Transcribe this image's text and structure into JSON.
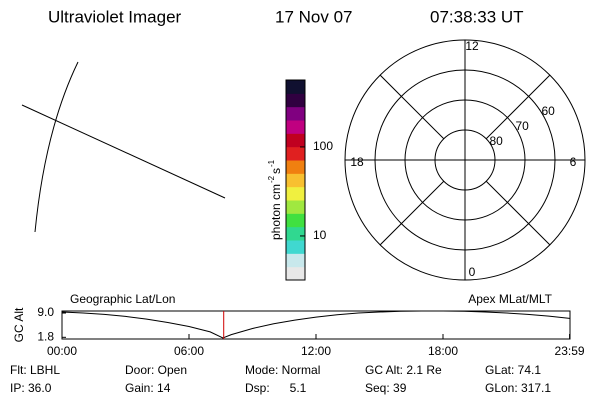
{
  "header": {
    "title": "Ultraviolet Imager",
    "date": "17 Nov 07",
    "time": "07:38:33 UT"
  },
  "colorbar": {
    "label": [
      "photon cm",
      "-2",
      "s",
      "-1"
    ],
    "scale": "log",
    "lim": [
      3.2,
      565
    ],
    "ticks": [
      10,
      100
    ],
    "colors": [
      "#e8e8e8",
      "#c8e8ec",
      "#40d8d0",
      "#30d890",
      "#40e040",
      "#a0e840",
      "#f0f040",
      "#f8c030",
      "#f08010",
      "#e02020",
      "#c00020",
      "#c00080",
      "#800080",
      "#300040",
      "#101030"
    ]
  },
  "polar": {
    "latlim": [
      50,
      90
    ],
    "circles": [
      80,
      70,
      60
    ],
    "mlt_labels": [
      12,
      18,
      6,
      0
    ]
  },
  "altitude_plot": {
    "type": "line",
    "ylabel": "GC Alt",
    "left_label": "Geographic Lat/Lon",
    "right_label": "Apex MLat/MLT",
    "x": [
      0,
      1,
      2,
      3,
      4,
      5,
      6,
      7,
      7.6,
      8,
      9,
      10,
      11,
      12,
      13,
      14,
      15,
      16,
      17,
      18,
      19,
      20,
      21,
      22,
      23,
      23.98
    ],
    "values": [
      9.3,
      9.0,
      8.6,
      8.0,
      7.2,
      6.2,
      5.0,
      3.4,
      1.6,
      2.6,
      4.4,
      5.8,
      6.9,
      7.8,
      8.5,
      9.0,
      9.3,
      9.5,
      9.6,
      9.6,
      9.5,
      9.3,
      9.0,
      8.6,
      8.1,
      7.4
    ],
    "color": "#000000",
    "xlim": [
      0,
      24
    ],
    "xticks": [
      {
        "value": 0,
        "label": "00:00"
      },
      {
        "value": 6,
        "label": "06:00"
      },
      {
        "value": 12,
        "label": "12:00"
      },
      {
        "value": 18,
        "label": "18:00"
      },
      {
        "value": 23.98,
        "label": "23:59"
      }
    ],
    "ylim": [
      1.3,
      9.6
    ],
    "yticks": [
      {
        "value": 9,
        "label": "9.0"
      },
      1.8
    ],
    "current_time": 7.64,
    "current_color": "#d00000"
  },
  "info": [
    [
      "Flt: LBHL",
      "Door: Open",
      "Mode: Normal",
      "GC Alt: 2.1 Re",
      "GLat: 74.1"
    ],
    [
      "IP: 36.0",
      "Gain: 14",
      "Dsp:      5.1",
      "Seq: 39",
      "GLon: 317.1"
    ]
  ]
}
